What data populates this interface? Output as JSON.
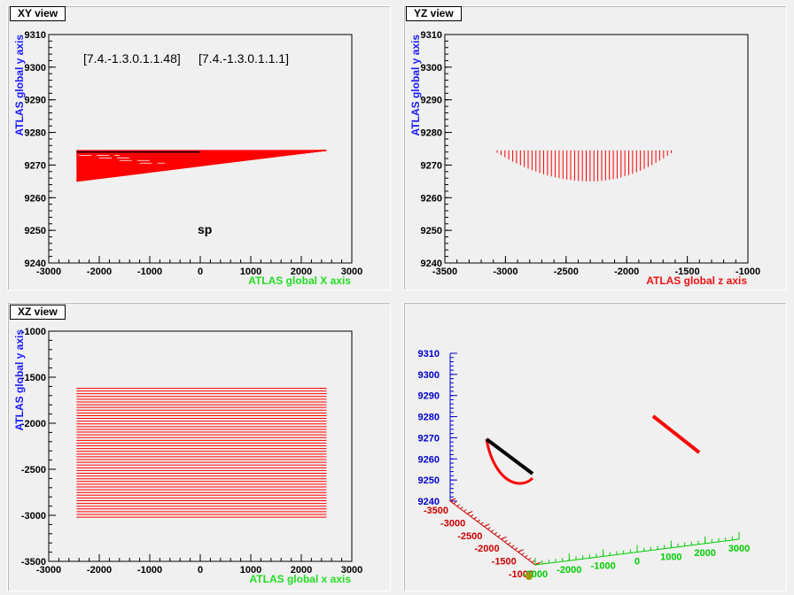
{
  "chart_data": [
    {
      "type": "line",
      "title": "XY view",
      "xlabel": "ATLAS global X axis",
      "ylabel": "ATLAS global y axis",
      "xlim": [
        -3000,
        3000
      ],
      "ylim": [
        9240,
        9310
      ],
      "xticks": [
        "-3000",
        "-2000",
        "-1000",
        "0",
        "1000",
        "2000",
        "3000"
      ],
      "yticks": [
        "9240",
        "9250",
        "9260",
        "9270",
        "9280",
        "9290",
        "9300",
        "9310"
      ],
      "annotations": [
        "[7.4.-1.3.0.1.1.48]",
        "[7.4.-1.3.0.1.1.1]",
        "sp"
      ],
      "series": [
        {
          "color": "#ff0000",
          "fan_from": [
            -2450,
            9274.5
          ],
          "fan_to": [
            2500,
            9274.5
          ],
          "fan_bottom": [
            -2450,
            9265
          ],
          "lines": 48
        },
        {
          "color": "#000000",
          "x": [
            -2450,
            0
          ],
          "y": [
            9274,
            9274
          ]
        }
      ]
    },
    {
      "type": "line",
      "title": "YZ view",
      "xlabel": "ATLAS global z axis",
      "ylabel": "ATLAS global y axis",
      "xlim": [
        -3500,
        -1000
      ],
      "ylim": [
        9240,
        9310
      ],
      "xticks": [
        "-3500",
        "-3000",
        "-2500",
        "-2000",
        "-1500",
        "-1000"
      ],
      "yticks": [
        "9240",
        "9250",
        "9260",
        "9270",
        "9280",
        "9290",
        "9300",
        "9310"
      ],
      "series": [
        {
          "color": "#ff0000",
          "z_range": [
            -3100,
            -1600
          ],
          "top": 9274.5,
          "bottom": 9265,
          "center": -2300,
          "lines": 48
        }
      ]
    },
    {
      "type": "line",
      "title": "XZ view",
      "xlabel": "ATLAS global x axis",
      "ylabel": "ATLAS global y axis",
      "xlim": [
        -3000,
        3000
      ],
      "ylim": [
        -3500,
        -1000
      ],
      "xticks": [
        "-3000",
        "-2000",
        "-1000",
        "0",
        "1000",
        "2000",
        "3000"
      ],
      "yticks": [
        "-3500",
        "-3000",
        "-2500",
        "-2000",
        "-1500",
        "-1000"
      ],
      "series": [
        {
          "color": "#ff0000",
          "x_range": [
            -2450,
            2500
          ],
          "z_range": [
            -3020,
            -1620
          ],
          "lines": 48
        }
      ]
    },
    {
      "type": "scatter",
      "title": "",
      "yticks": [
        "9240",
        "9250",
        "9260",
        "9270",
        "9280",
        "9290",
        "9300",
        "9310"
      ],
      "zticks": [
        "-3500",
        "-3000",
        "-2500",
        "-2000",
        "-1500",
        "-1000"
      ],
      "xticks": [
        "-3000",
        "-2000",
        "-1000",
        "0",
        "1000",
        "2000",
        "3000"
      ],
      "axis_colors": {
        "y": "#0000cc",
        "z": "#cc0000",
        "x": "#00cc00"
      }
    }
  ]
}
